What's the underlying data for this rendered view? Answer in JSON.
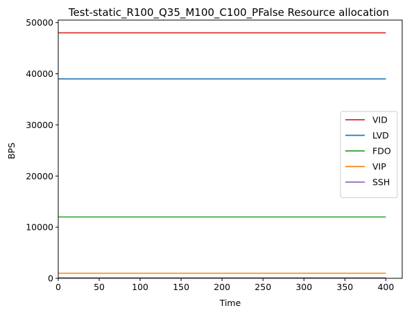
{
  "chart_data": {
    "type": "line",
    "title": "Test-static_R100_Q35_M100_C100_PFalse Resource allocation",
    "xlabel": "Time",
    "ylabel": "BPS",
    "xlim": [
      0,
      420
    ],
    "ylim": [
      0,
      50500
    ],
    "xticks": [
      0,
      50,
      100,
      150,
      200,
      250,
      300,
      350,
      400
    ],
    "yticks": [
      0,
      10000,
      20000,
      30000,
      40000,
      50000
    ],
    "grid": false,
    "legend_position": "center-right",
    "x": [
      0,
      400
    ],
    "series": [
      {
        "name": "VID",
        "color": "#d62728",
        "values": [
          48000,
          48000
        ]
      },
      {
        "name": "LVD",
        "color": "#1f77b4",
        "values": [
          39000,
          39000
        ]
      },
      {
        "name": "FDO",
        "color": "#2ca02c",
        "values": [
          12000,
          12000
        ]
      },
      {
        "name": "VIP",
        "color": "#ff7f0e",
        "values": [
          1000,
          1000
        ]
      },
      {
        "name": "SSH",
        "color": "#9467bd",
        "values": [
          100,
          100
        ]
      }
    ]
  }
}
